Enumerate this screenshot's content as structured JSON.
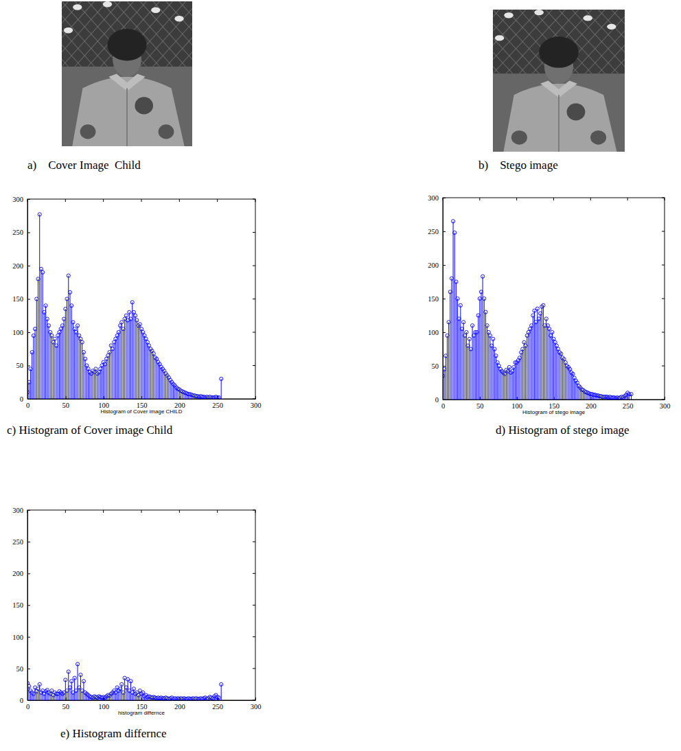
{
  "images": [
    {
      "caption": "a)    Cover Image  Child"
    },
    {
      "caption": "b)    Stego image"
    }
  ],
  "chart_data": [
    {
      "type": "stem",
      "title": "c) Histogram of Cover image Child",
      "x_label": "Histogram of Cover image CHILD",
      "color": "#0000ff",
      "marker": "circle",
      "xlim": [
        0,
        300
      ],
      "ylim": [
        0,
        300
      ],
      "xticks": [
        0,
        50,
        100,
        150,
        200,
        250,
        300
      ],
      "yticks": [
        0,
        50,
        100,
        150,
        200,
        250,
        300
      ],
      "x": [
        0,
        2,
        4,
        6,
        8,
        10,
        12,
        14,
        16,
        18,
        20,
        22,
        24,
        26,
        28,
        30,
        32,
        34,
        36,
        38,
        40,
        42,
        44,
        46,
        48,
        50,
        52,
        54,
        56,
        58,
        60,
        62,
        64,
        66,
        68,
        70,
        72,
        74,
        76,
        78,
        80,
        82,
        84,
        86,
        88,
        90,
        92,
        94,
        96,
        98,
        100,
        102,
        104,
        106,
        108,
        110,
        112,
        114,
        116,
        118,
        120,
        122,
        124,
        126,
        128,
        130,
        132,
        134,
        136,
        138,
        140,
        142,
        144,
        146,
        148,
        150,
        152,
        154,
        156,
        158,
        160,
        162,
        164,
        166,
        168,
        170,
        172,
        174,
        176,
        178,
        180,
        182,
        184,
        186,
        188,
        190,
        192,
        194,
        196,
        198,
        200,
        202,
        204,
        206,
        208,
        210,
        212,
        214,
        216,
        218,
        220,
        222,
        224,
        226,
        228,
        230,
        232,
        234,
        236,
        238,
        240,
        242,
        244,
        246,
        248,
        250,
        252,
        255
      ],
      "values": [
        10,
        25,
        45,
        70,
        95,
        105,
        150,
        180,
        277,
        195,
        190,
        130,
        140,
        120,
        110,
        100,
        95,
        85,
        90,
        80,
        95,
        100,
        105,
        110,
        120,
        135,
        150,
        185,
        160,
        140,
        115,
        105,
        100,
        110,
        95,
        90,
        85,
        70,
        60,
        50,
        45,
        40,
        38,
        42,
        40,
        45,
        38,
        40,
        45,
        50,
        55,
        52,
        60,
        65,
        70,
        80,
        75,
        85,
        90,
        95,
        100,
        110,
        115,
        105,
        120,
        125,
        118,
        130,
        120,
        145,
        130,
        125,
        118,
        110,
        112,
        105,
        100,
        95,
        90,
        85,
        80,
        75,
        72,
        68,
        62,
        60,
        55,
        52,
        48,
        45,
        42,
        38,
        35,
        32,
        28,
        25,
        22,
        20,
        17,
        15,
        14,
        12,
        11,
        10,
        9,
        8,
        7,
        7,
        6,
        5,
        5,
        4,
        4,
        3,
        4,
        3,
        3,
        2,
        3,
        2,
        3,
        2,
        2,
        2,
        3,
        2,
        2,
        30
      ]
    },
    {
      "type": "stem",
      "title": "d) Histogram of stego image",
      "x_label": "Histogram of stego image",
      "color": "#0000ff",
      "marker": "circle",
      "xlim": [
        0,
        300
      ],
      "ylim": [
        0,
        300
      ],
      "xticks": [
        0,
        50,
        100,
        150,
        200,
        250,
        300
      ],
      "yticks": [
        0,
        50,
        100,
        150,
        200,
        250,
        300
      ],
      "x": [
        0,
        2,
        4,
        6,
        8,
        10,
        12,
        14,
        16,
        18,
        20,
        22,
        24,
        26,
        28,
        30,
        32,
        34,
        36,
        38,
        40,
        42,
        44,
        46,
        48,
        50,
        52,
        54,
        56,
        58,
        60,
        62,
        64,
        66,
        68,
        70,
        72,
        74,
        76,
        78,
        80,
        82,
        84,
        86,
        88,
        90,
        92,
        94,
        96,
        98,
        100,
        102,
        104,
        106,
        108,
        110,
        112,
        114,
        116,
        118,
        120,
        122,
        124,
        126,
        128,
        130,
        132,
        134,
        136,
        138,
        140,
        142,
        144,
        146,
        148,
        150,
        152,
        154,
        156,
        158,
        160,
        162,
        164,
        166,
        168,
        170,
        172,
        174,
        176,
        178,
        180,
        182,
        184,
        186,
        188,
        190,
        192,
        194,
        196,
        198,
        200,
        202,
        204,
        206,
        208,
        210,
        212,
        214,
        216,
        218,
        220,
        222,
        224,
        226,
        228,
        230,
        232,
        234,
        236,
        238,
        240,
        242,
        244,
        246,
        248,
        250,
        252,
        255
      ],
      "values": [
        35,
        45,
        65,
        95,
        115,
        160,
        180,
        265,
        248,
        175,
        150,
        120,
        140,
        105,
        115,
        95,
        100,
        80,
        90,
        75,
        110,
        95,
        100,
        100,
        125,
        150,
        160,
        183,
        150,
        130,
        110,
        100,
        95,
        80,
        90,
        75,
        65,
        55,
        50,
        45,
        42,
        40,
        38,
        44,
        42,
        48,
        40,
        42,
        48,
        55,
        55,
        58,
        62,
        70,
        75,
        85,
        80,
        95,
        100,
        105,
        110,
        125,
        132,
        115,
        135,
        120,
        128,
        138,
        140,
        110,
        120,
        110,
        105,
        95,
        100,
        90,
        85,
        80,
        75,
        70,
        68,
        62,
        60,
        55,
        50,
        48,
        45,
        40,
        38,
        32,
        28,
        25,
        20,
        18,
        15,
        14,
        12,
        11,
        10,
        9,
        8,
        8,
        7,
        7,
        6,
        6,
        5,
        5,
        4,
        4,
        4,
        4,
        3,
        4,
        3,
        3,
        3,
        2,
        3,
        2,
        3,
        4,
        3,
        5,
        7,
        10,
        8,
        8
      ]
    },
    {
      "type": "stem",
      "title": "e) Histogram differnce",
      "x_label": "histogram differnce",
      "color": "#0000ff",
      "marker": "circle",
      "xlim": [
        0,
        300
      ],
      "ylim": [
        0,
        300
      ],
      "xticks": [
        0,
        50,
        100,
        150,
        200,
        250,
        300
      ],
      "yticks": [
        0,
        50,
        100,
        150,
        200,
        250,
        300
      ],
      "x": [
        0,
        2,
        4,
        6,
        8,
        10,
        12,
        14,
        16,
        18,
        20,
        22,
        24,
        26,
        28,
        30,
        32,
        34,
        36,
        38,
        40,
        42,
        44,
        46,
        48,
        50,
        52,
        54,
        56,
        58,
        60,
        62,
        64,
        66,
        68,
        70,
        72,
        74,
        76,
        78,
        80,
        82,
        84,
        86,
        88,
        90,
        92,
        94,
        96,
        98,
        100,
        102,
        104,
        106,
        108,
        110,
        112,
        114,
        116,
        118,
        120,
        122,
        124,
        126,
        128,
        130,
        132,
        134,
        136,
        138,
        140,
        142,
        144,
        146,
        148,
        150,
        152,
        154,
        156,
        158,
        160,
        162,
        164,
        166,
        168,
        170,
        172,
        174,
        176,
        178,
        180,
        182,
        184,
        186,
        188,
        190,
        192,
        194,
        196,
        198,
        200,
        202,
        204,
        206,
        208,
        210,
        212,
        214,
        216,
        218,
        220,
        222,
        224,
        226,
        228,
        230,
        232,
        234,
        236,
        238,
        240,
        242,
        244,
        246,
        248,
        250,
        252,
        255
      ],
      "values": [
        27,
        22,
        15,
        12,
        10,
        20,
        14,
        18,
        25,
        12,
        15,
        10,
        14,
        16,
        12,
        10,
        15,
        8,
        12,
        10,
        10,
        14,
        12,
        10,
        12,
        32,
        15,
        45,
        20,
        30,
        12,
        35,
        15,
        57,
        20,
        40,
        15,
        30,
        12,
        10,
        8,
        6,
        5,
        4,
        6,
        5,
        4,
        6,
        5,
        4,
        5,
        4,
        6,
        8,
        7,
        10,
        12,
        15,
        12,
        20,
        15,
        18,
        25,
        12,
        35,
        20,
        33,
        15,
        30,
        12,
        18,
        10,
        12,
        8,
        15,
        10,
        12,
        6,
        8,
        5,
        6,
        5,
        4,
        5,
        4,
        3,
        4,
        3,
        4,
        3,
        3,
        4,
        3,
        2,
        3,
        4,
        2,
        3,
        2,
        3,
        2,
        3,
        2,
        3,
        2,
        2,
        3,
        2,
        2,
        3,
        2,
        3,
        2,
        2,
        3,
        2,
        3,
        4,
        2,
        3,
        5,
        4,
        3,
        6,
        8,
        5,
        4,
        25
      ]
    }
  ]
}
